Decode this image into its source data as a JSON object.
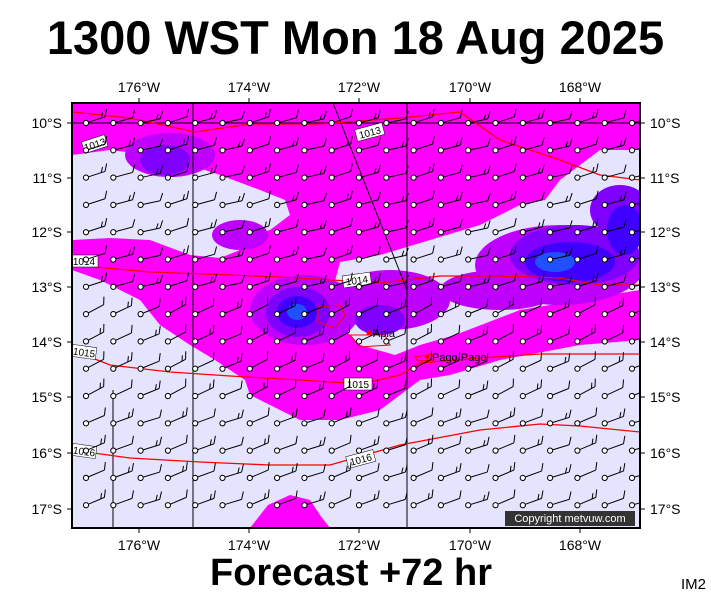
{
  "title": "1300 WST Mon 18 Aug 2025",
  "footer": "Forecast +72 hr",
  "code": "IM2",
  "copyright": "Copyright metvuw.com",
  "axes": {
    "lon_labels": [
      "176°W",
      "174°W",
      "172°W",
      "170°W",
      "168°W"
    ],
    "lat_labels": [
      "10°S",
      "11°S",
      "12°S",
      "13°S",
      "14°S",
      "15°S",
      "16°S",
      "17°S"
    ]
  },
  "isobars": [
    {
      "label": "1013"
    },
    {
      "label": "1013"
    },
    {
      "label": "1014"
    },
    {
      "label": "1014"
    },
    {
      "label": "1015"
    },
    {
      "label": "1015"
    },
    {
      "label": "1016"
    },
    {
      "label": "1016"
    }
  ],
  "places": [
    {
      "name": "Apia"
    },
    {
      "name": "Pago Pago"
    }
  ],
  "colors": {
    "background": "#e4e4ff",
    "magenta": "#ff00ff",
    "purple": "#c000ff",
    "violet": "#8000ff",
    "blue_dark": "#4000ff",
    "blue": "#2050ff",
    "isobar": "#ff0000",
    "land": "#ff0000"
  }
}
